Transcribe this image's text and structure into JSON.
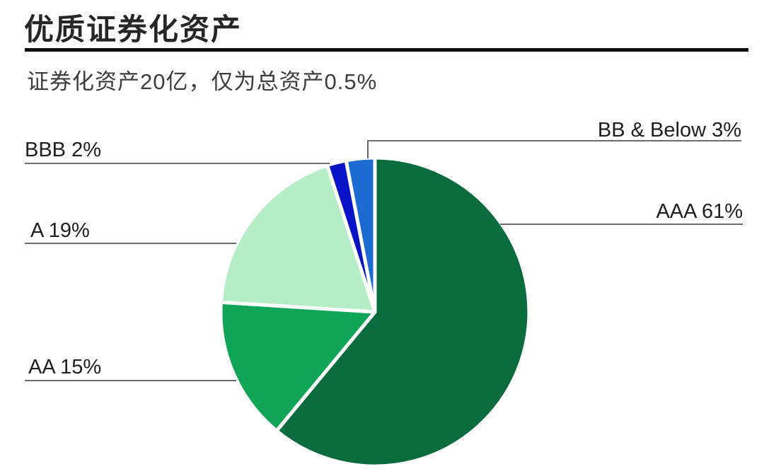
{
  "header": {
    "title": "优质证券化资产",
    "subtitle": "证券化资产20亿，仅为总资产0.5%"
  },
  "chart_data": {
    "type": "pie",
    "title": "优质证券化资产",
    "subtitle": "证券化资产20亿，仅为总资产0.5%",
    "categories": [
      "AAA",
      "AA",
      "A",
      "BBB",
      "BB & Below"
    ],
    "values": [
      61,
      15,
      19,
      2,
      3
    ],
    "unit": "%",
    "display_labels": {
      "aaa": "AAA 61%",
      "aa": "AA 15%",
      "a": "A 19%",
      "bbb": "BBB 2%",
      "bb_below": "BB & Below 3%"
    },
    "colors": [
      "#0A6B3D",
      "#10A557",
      "#B5EDC7",
      "#0813C7",
      "#1B6BD3"
    ],
    "start_position": "top",
    "direction": "clockwise",
    "slice_border_color": "#FFFFFF",
    "leader_line_color": "#6B6B6B",
    "label_color": "#1F1F1F",
    "legend_position": "none",
    "grid": false
  }
}
